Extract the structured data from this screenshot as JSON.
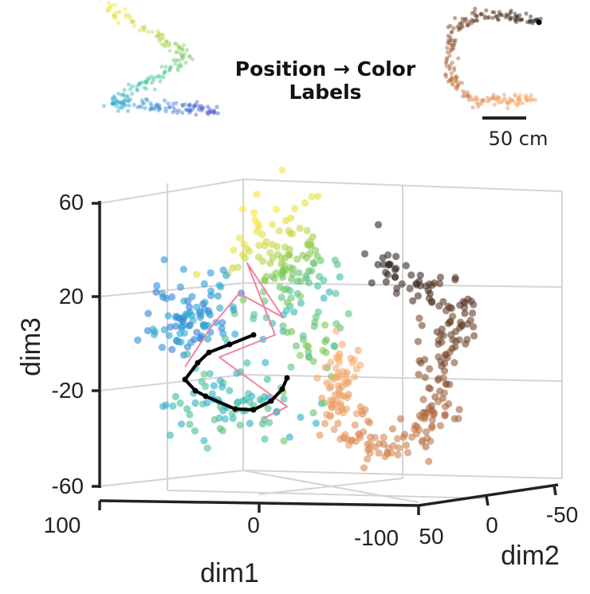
{
  "legend": {
    "title_line1": "Position → Color",
    "title_line2": "Labels",
    "scale_bar_label": "50 cm"
  },
  "chart_data": {
    "type": "scatter3d",
    "title": "",
    "axes": {
      "dim1": {
        "label": "dim1",
        "ticks": [
          "100",
          "0",
          "-100"
        ],
        "range": [
          100,
          -100
        ]
      },
      "dim2": {
        "label": "dim2",
        "ticks": [
          "50",
          "0",
          "-50"
        ],
        "range": [
          50,
          -50
        ]
      },
      "dim3": {
        "label": "dim3",
        "ticks": [
          "60",
          "20",
          "-20",
          "-60"
        ],
        "range": [
          -60,
          60
        ]
      }
    },
    "grid": true,
    "colormaps": {
      "maze_1": [
        "#f6e83a",
        "#c8d84a",
        "#7cc85a",
        "#40c0a8",
        "#2fa8d8",
        "#3a7fd8",
        "#4a4ac8"
      ],
      "maze_2": [
        "#f8b070",
        "#e89860",
        "#c07848",
        "#8a5434",
        "#5a3a28",
        "#2a2424"
      ]
    },
    "clusters": [
      {
        "name": "maze_1_upper",
        "colormap": "maze_1",
        "center": [
          0,
          30
        ],
        "spread": [
          18,
          25
        ],
        "count": 110
      },
      {
        "name": "maze_1_left",
        "colormap": "maze_1",
        "center": [
          -40,
          10
        ],
        "spread": [
          15,
          12
        ],
        "count": 90
      },
      {
        "name": "maze_1_lower",
        "colormap": "maze_1",
        "center": [
          -15,
          -25
        ],
        "spread": [
          25,
          12
        ],
        "count": 80
      },
      {
        "name": "maze_2_arc",
        "colormap": "maze_2",
        "count": 260
      }
    ],
    "trajectories": [
      {
        "name": "black_path",
        "color": "#000000",
        "points_dim_xy": [
          [
            -5,
            -10
          ],
          [
            -25,
            -20
          ],
          [
            -45,
            -38
          ],
          [
            -30,
            -45
          ],
          [
            0,
            -50
          ],
          [
            20,
            -40
          ],
          [
            25,
            -25
          ],
          [
            10,
            -15
          ],
          [
            -5,
            -10
          ]
        ]
      },
      {
        "name": "pink_path",
        "color": "#f080a0",
        "points_dim_xy": [
          [
            -45,
            -15
          ],
          [
            -30,
            10
          ],
          [
            -10,
            5
          ],
          [
            15,
            0
          ],
          [
            5,
            25
          ],
          [
            25,
            -5
          ],
          [
            -10,
            -20
          ],
          [
            30,
            -35
          ]
        ]
      }
    ]
  }
}
